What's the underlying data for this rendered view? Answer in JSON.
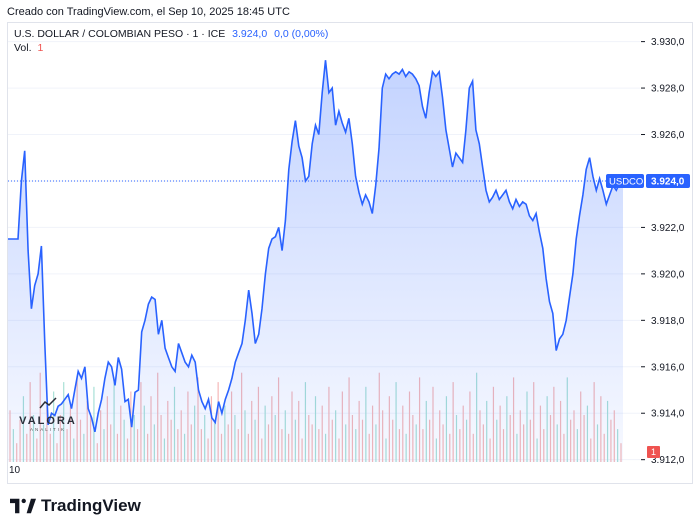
{
  "header": {
    "created": "Creado con TradingView.com, el Sep 10, 2025 18:45 UTC"
  },
  "legend": {
    "symbol": "U.S. DOLLAR / COLOMBIAN PESO · 1 · ICE",
    "price": "3.924,0",
    "change": "0,0 (0,00%)",
    "vol_label": "Vol.",
    "vol_value": "1"
  },
  "watermark": {
    "name": "VALORA",
    "sub": "ANALITIK"
  },
  "footer": {
    "brand": "TradingView"
  },
  "colors": {
    "line": "#2962ff",
    "fill": "#d6e0fb",
    "volume": "#f5b8b8",
    "volume_alt": "#a8e0d6",
    "badge": "#ef5350"
  },
  "chart_data": {
    "type": "area",
    "title": "",
    "xlabel": "",
    "ylabel": "",
    "ylim": [
      3911.9,
      3930.5
    ],
    "y_ticks": [
      "3.930,0",
      "3.928,0",
      "3.926,0",
      "3.924,0",
      "3.922,0",
      "3.920,0",
      "3.918,0",
      "3.916,0",
      "3.914,0",
      "3.912,0"
    ],
    "y_tick_values": [
      3930,
      3928,
      3926,
      3924,
      3922,
      3920,
      3918,
      3916,
      3914,
      3912
    ],
    "x_ticks": [
      "10"
    ],
    "last_price_label": "USDCOP",
    "last_price": "3.924,0",
    "last_price_value": 3924.0,
    "volume_badge": "1",
    "series": [
      {
        "values": [
          3921.5,
          3921.5,
          3921.5,
          3921.5,
          3924.0,
          3925.3,
          3921.0,
          3918.5,
          3919.5,
          3920.0,
          3921.2,
          3917.0,
          3913.5,
          3914.0,
          3913.9,
          3914.3,
          3914.4,
          3914.6,
          3914.8,
          3914.2,
          3915.0,
          3915.8,
          3915.5,
          3916.0,
          3914.2,
          3913.8,
          3913.2,
          3914.0,
          3914.6,
          3915.5,
          3916.2,
          3916.0,
          3915.2,
          3916.4,
          3915.9,
          3914.5,
          3914.6,
          3913.4,
          3914.9,
          3915.0,
          3917.5,
          3918.0,
          3918.7,
          3919.0,
          3918.9,
          3917.4,
          3918.0,
          3916.8,
          3916.4,
          3916.0,
          3915.8,
          3917.0,
          3916.6,
          3916.2,
          3916.0,
          3916.5,
          3916.2,
          3915.0,
          3914.5,
          3914.2,
          3914.6,
          3913.8,
          3913.6,
          3914.5,
          3914.0,
          3914.6,
          3915.0,
          3915.5,
          3916.2,
          3916.6,
          3917.0,
          3918.0,
          3919.3,
          3918.3,
          3917.0,
          3917.4,
          3918.5,
          3920.0,
          3921.1,
          3921.5,
          3921.6,
          3922.0,
          3921.0,
          3922.3,
          3924.5,
          3925.7,
          3926.6,
          3925.5,
          3925.0,
          3924.0,
          3924.2,
          3925.6,
          3926.4,
          3926.0,
          3927.8,
          3929.2,
          3927.8,
          3928.0,
          3926.4,
          3927.0,
          3926.5,
          3926.1,
          3926.7,
          3925.6,
          3924.2,
          3923.5,
          3923.0,
          3923.4,
          3923.1,
          3922.6,
          3923.8,
          3925.4,
          3928.0,
          3928.6,
          3928.4,
          3928.6,
          3928.7,
          3928.6,
          3928.8,
          3928.5,
          3928.7,
          3928.6,
          3928.4,
          3928.1,
          3927.2,
          3926.7,
          3927.8,
          3928.7,
          3928.5,
          3928.7,
          3927.6,
          3926.2,
          3925.4,
          3924.6,
          3925.2,
          3925.0,
          3924.8,
          3926.2,
          3928.0,
          3928.3,
          3926.2,
          3925.6,
          3924.6,
          3923.6,
          3923.1,
          3923.3,
          3923.6,
          3923.2,
          3923.4,
          3923.6,
          3923.1,
          3922.8,
          3923.2,
          3922.9,
          3923.1,
          3923.0,
          3922.5,
          3922.3,
          3922.6,
          3921.8,
          3921.1,
          3919.8,
          3918.8,
          3918.3,
          3916.7,
          3917.2,
          3917.4,
          3918.0,
          3919.0,
          3920.0,
          3921.5,
          3922.5,
          3923.4,
          3924.5,
          3925.0,
          3924.2,
          3923.6,
          3924.1,
          3923.6,
          3923.0,
          3923.4,
          3923.8,
          3923.6,
          3923.9,
          3924.0
        ]
      }
    ],
    "volume": [
      0.55,
      0.35,
      0.2,
      0.45,
      0.7,
      0.3,
      0.85,
      0.5,
      0.25,
      0.95,
      0.4,
      0.6,
      0.3,
      0.75,
      0.2,
      0.5,
      0.85,
      0.35,
      0.6,
      0.25,
      0.9,
      0.45,
      0.3,
      0.65,
      0.5,
      0.8,
      0.2,
      0.55,
      0.35,
      0.7,
      0.4,
      0.9,
      0.3,
      0.6,
      0.45,
      0.25,
      0.75,
      0.5,
      0.35,
      0.85,
      0.6,
      0.3,
      0.7,
      0.4,
      0.95,
      0.5,
      0.25,
      0.65,
      0.45,
      0.8,
      0.35,
      0.55,
      0.3,
      0.75,
      0.4,
      0.6,
      0.9,
      0.35,
      0.5,
      0.25,
      0.7,
      0.45,
      0.85,
      0.3,
      0.6,
      0.4,
      0.75,
      0.5,
      0.35,
      0.95,
      0.55,
      0.3,
      0.65,
      0.45,
      0.8,
      0.25,
      0.6,
      0.4,
      0.7,
      0.5,
      0.9,
      0.35,
      0.55,
      0.3,
      0.75,
      0.45,
      0.65,
      0.25,
      0.85,
      0.5,
      0.4,
      0.7,
      0.35,
      0.6,
      0.3,
      0.8,
      0.45,
      0.55,
      0.25,
      0.75,
      0.4,
      0.9,
      0.5,
      0.35,
      0.65,
      0.45,
      0.8,
      0.3,
      0.6,
      0.4,
      0.95,
      0.55,
      0.25,
      0.7,
      0.45,
      0.85,
      0.35,
      0.6,
      0.3,
      0.75,
      0.5,
      0.4,
      0.9,
      0.35,
      0.65,
      0.45,
      0.8,
      0.25,
      0.55,
      0.4,
      0.7,
      0.3,
      0.85,
      0.5,
      0.35,
      0.6,
      0.45,
      0.75,
      0.3,
      0.95,
      0.55,
      0.4,
      0.65,
      0.25,
      0.8,
      0.45,
      0.6,
      0.35,
      0.7,
      0.5,
      0.9,
      0.3,
      0.55,
      0.4,
      0.75,
      0.45,
      0.85,
      0.25,
      0.6,
      0.35,
      0.7,
      0.5,
      0.8,
      0.4,
      0.65,
      0.3,
      0.9,
      0.45,
      0.55,
      0.35,
      0.75,
      0.5,
      0.6,
      0.25,
      0.85,
      0.4,
      0.7,
      0.3,
      0.65,
      0.45,
      0.55,
      0.35,
      0.2
    ]
  }
}
